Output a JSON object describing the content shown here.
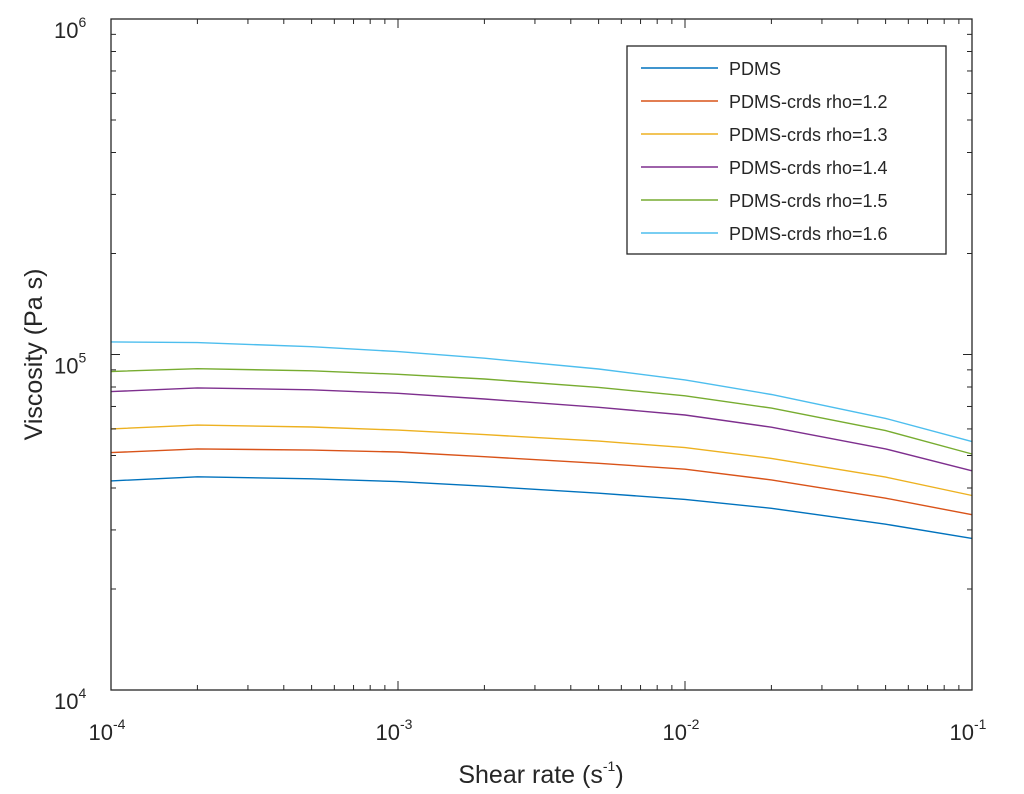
{
  "chart_data": {
    "type": "line",
    "xlabel": "Shear rate (s",
    "xlabel_exp": "-1",
    "xlabel_close": ")",
    "ylabel": "Viscosity (Pa s)",
    "xscale": "log",
    "yscale": "log",
    "xlim": [
      0.0001,
      0.1
    ],
    "ylim": [
      10000,
      1000000
    ],
    "x_ticks": [
      {
        "base": "10",
        "exp": "-4",
        "value": 0.0001
      },
      {
        "base": "10",
        "exp": "-3",
        "value": 0.001
      },
      {
        "base": "10",
        "exp": "-2",
        "value": 0.01
      },
      {
        "base": "10",
        "exp": "-1",
        "value": 0.1
      }
    ],
    "y_ticks": [
      {
        "base": "10",
        "exp": "4",
        "value": 10000
      },
      {
        "base": "10",
        "exp": "5",
        "value": 100000
      },
      {
        "base": "10",
        "exp": "6",
        "value": 1000000
      }
    ],
    "grid": false,
    "box": true,
    "legend_position": "top-right",
    "x": [
      0.0001,
      0.0002,
      0.0005,
      0.001,
      0.002,
      0.005,
      0.01,
      0.02,
      0.05,
      0.1
    ],
    "series": [
      {
        "name": "PDMS",
        "color": "#0072BD",
        "values": [
          42000,
          43200,
          42600,
          41800,
          40500,
          38600,
          37000,
          34800,
          31200,
          28300
        ]
      },
      {
        "name": "PDMS-crds rho=1.2",
        "color": "#D95319",
        "values": [
          51000,
          52300,
          51900,
          51200,
          49600,
          47400,
          45500,
          42300,
          37300,
          33300
        ]
      },
      {
        "name": "PDMS-crds rho=1.3",
        "color": "#EDB120",
        "values": [
          60000,
          61600,
          60800,
          59500,
          57700,
          55200,
          52800,
          49000,
          43100,
          38000
        ]
      },
      {
        "name": "PDMS-crds rho=1.4",
        "color": "#7E2F8E",
        "values": [
          77500,
          79500,
          78500,
          76600,
          73700,
          69600,
          66000,
          60700,
          52300,
          45000
        ]
      },
      {
        "name": "PDMS-crds rho=1.5",
        "color": "#77AC30",
        "values": [
          89000,
          90700,
          89400,
          87300,
          84500,
          79800,
          75300,
          69200,
          59300,
          50500
        ]
      },
      {
        "name": "PDMS-crds rho=1.6",
        "color": "#4DBEEE",
        "values": [
          109000,
          108500,
          105500,
          102000,
          97500,
          90500,
          84000,
          76000,
          64500,
          55000
        ]
      }
    ]
  }
}
